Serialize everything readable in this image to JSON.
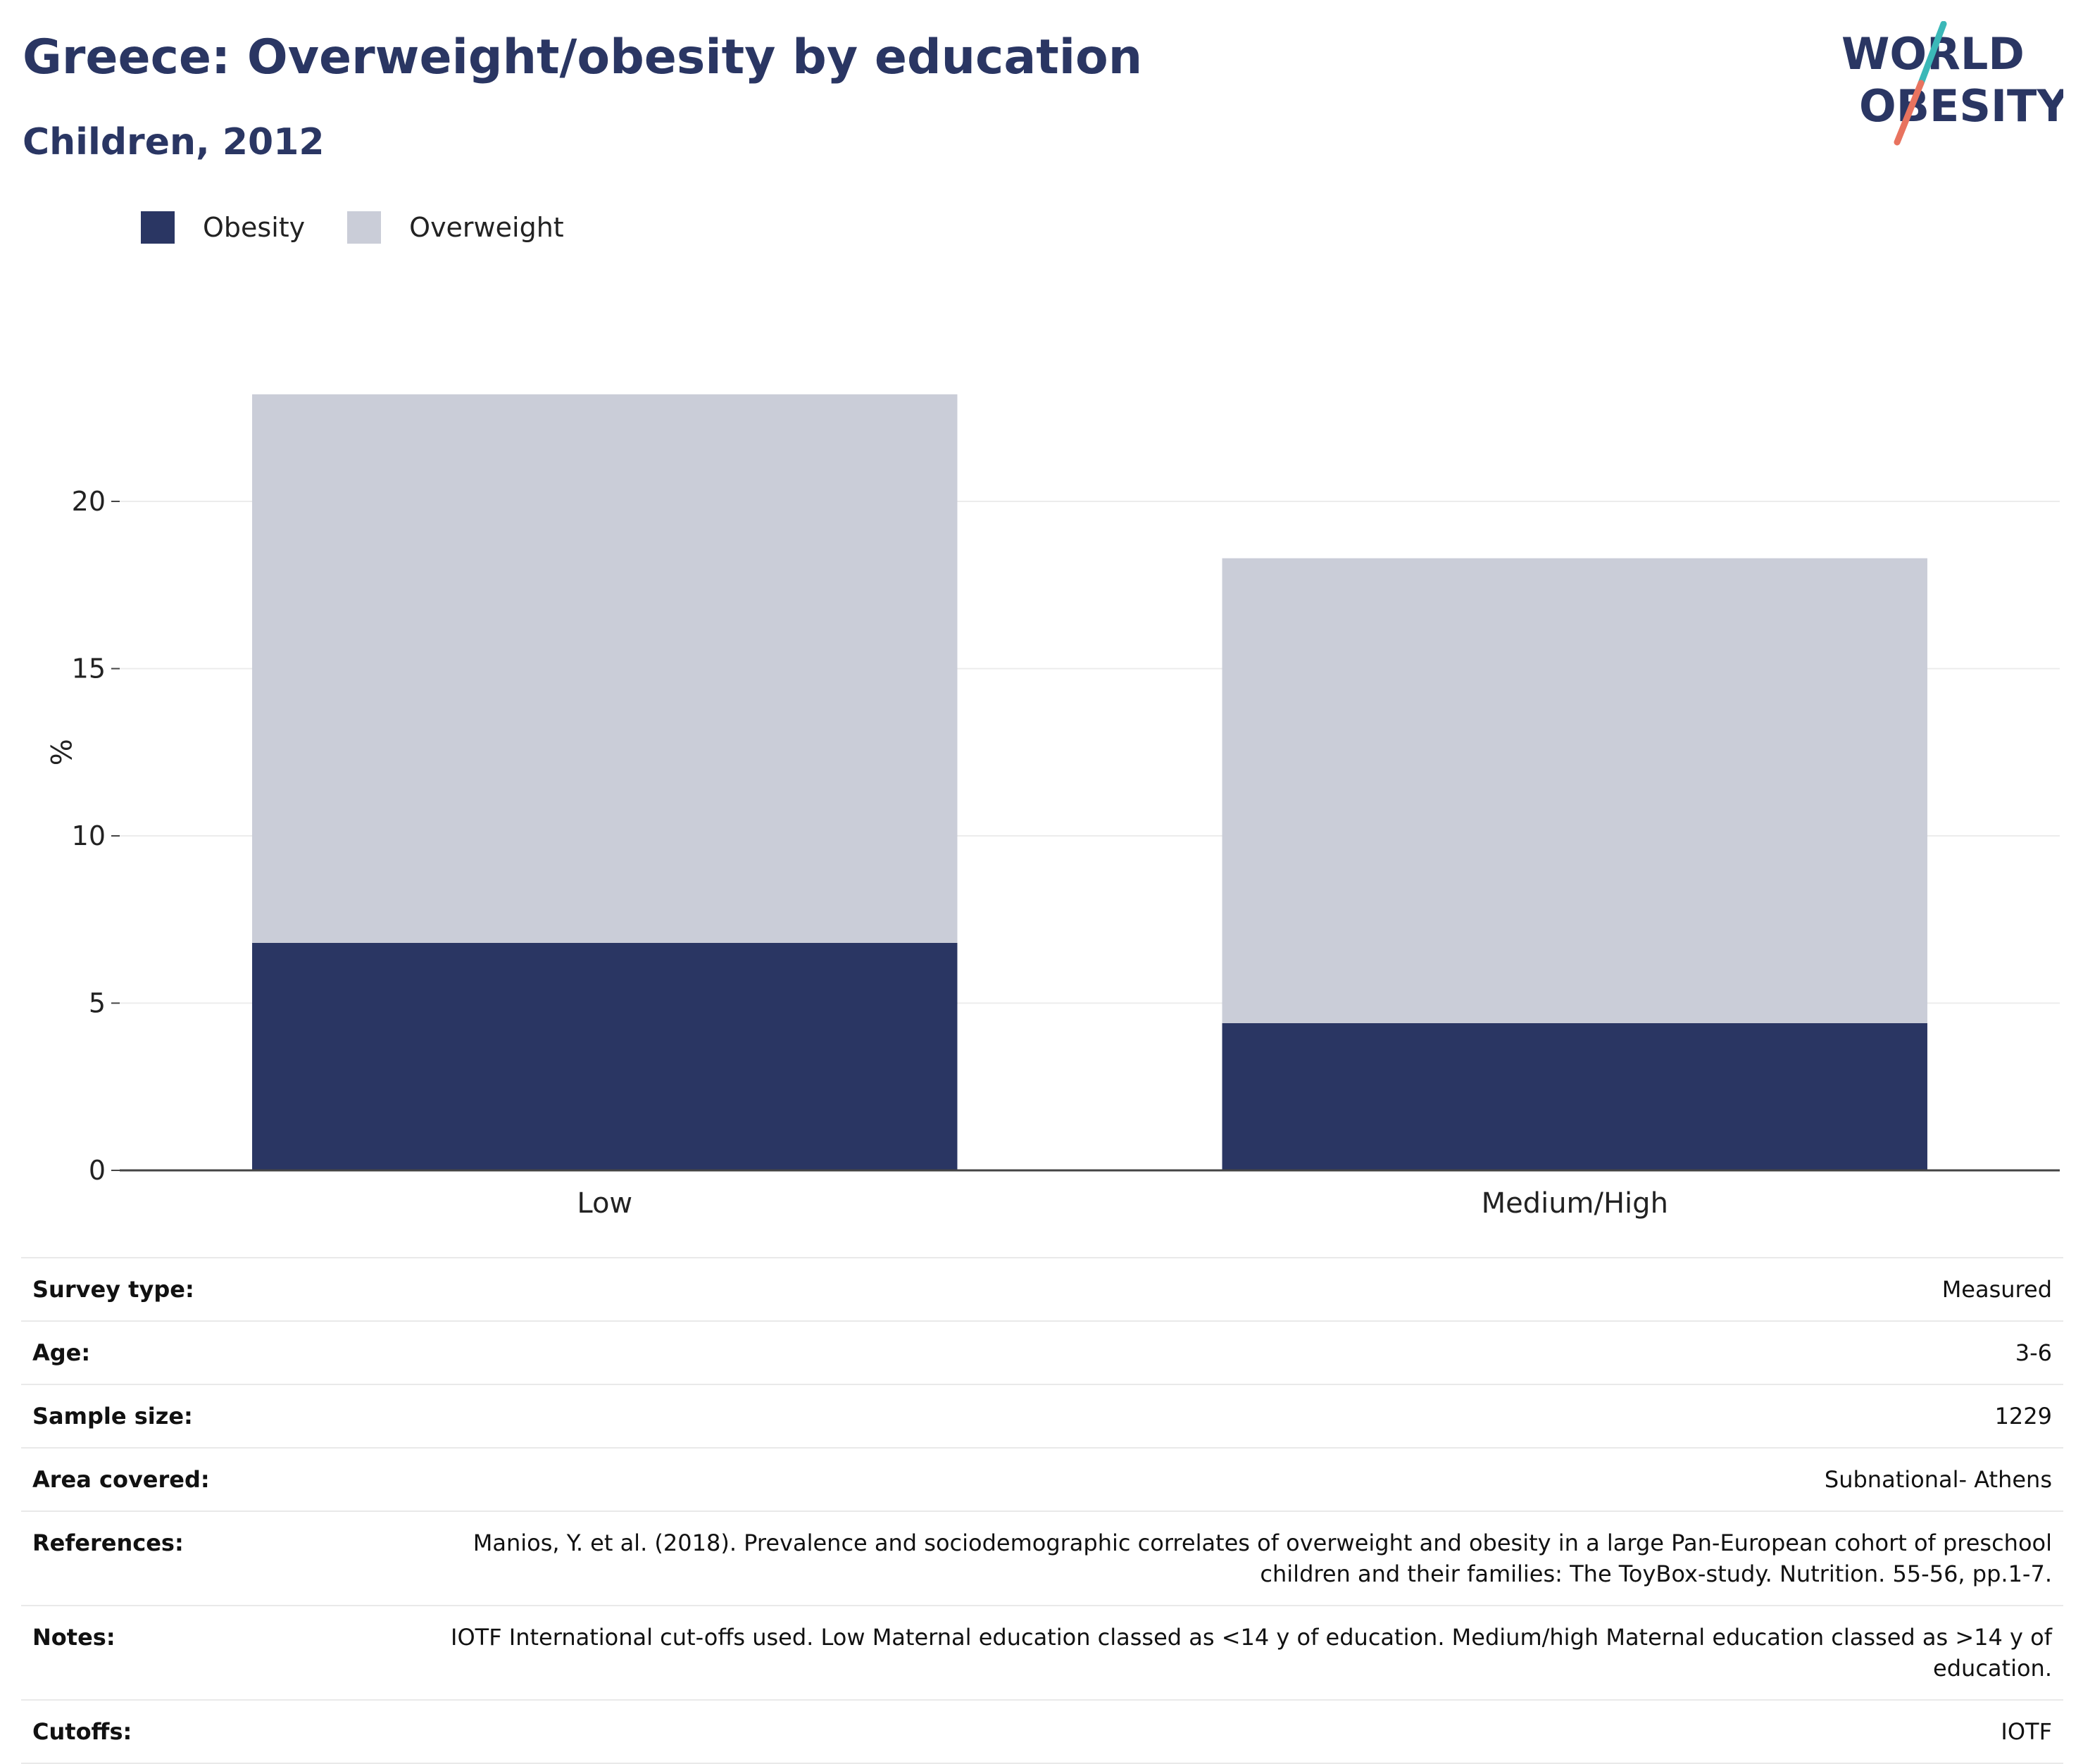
{
  "header": {
    "title": "Greece: Overweight/obesity by education",
    "subtitle": "Children, 2012",
    "logo_line1": "WORLD",
    "logo_line2": "OBESITY"
  },
  "colors": {
    "obesity": "#2a3663",
    "overweight": "#cacdd8",
    "title": "#2a3663",
    "logo_text": "#2a3663",
    "logo_slash_teal": "#3bb8b8",
    "logo_slash_red": "#e8735f"
  },
  "legend": [
    {
      "label": "Obesity",
      "color": "#2a3663"
    },
    {
      "label": "Overweight",
      "color": "#cacdd8"
    }
  ],
  "chart_data": {
    "type": "bar",
    "stacked": true,
    "categories": [
      "Low",
      "Medium/High"
    ],
    "series": [
      {
        "name": "Obesity",
        "values": [
          6.8,
          4.4
        ]
      },
      {
        "name": "Overweight",
        "values": [
          16.4,
          13.9
        ]
      }
    ],
    "ylabel": "%",
    "xlabel": "",
    "ylim": [
      0,
      25
    ],
    "yticks": [
      0,
      5,
      10,
      15,
      20
    ],
    "grid": true,
    "legend_position": "top-left"
  },
  "info_rows": [
    {
      "key": "Survey type:",
      "value": "Measured"
    },
    {
      "key": "Age:",
      "value": "3-6"
    },
    {
      "key": "Sample size:",
      "value": "1229"
    },
    {
      "key": "Area covered:",
      "value": "Subnational- Athens"
    },
    {
      "key": "References:",
      "value": "Manios, Y. et al. (2018). Prevalence and sociodemographic correlates of overweight and obesity in a large Pan-European cohort of preschool children and their families: The ToyBox-study. Nutrition. 55-56, pp.1-7."
    },
    {
      "key": "Notes:",
      "value": "IOTF International cut-offs used. Low Maternal education classed as <14 y of education. Medium/high Maternal education classed as >14 y of education."
    },
    {
      "key": "Cutoffs:",
      "value": "IOTF"
    }
  ]
}
